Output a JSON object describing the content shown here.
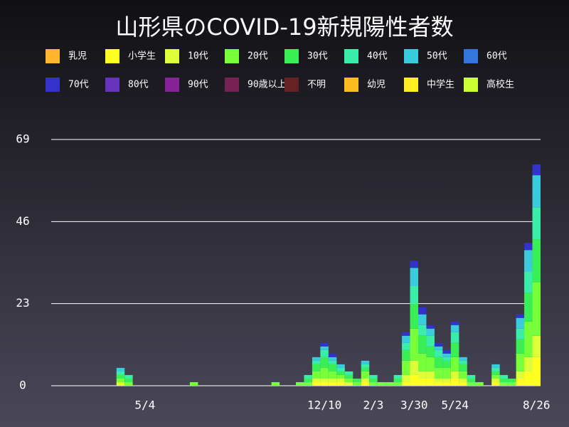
{
  "chart_data": {
    "type": "stacked_bar",
    "title": "山形県のCOVID-19新規陽性者数",
    "categories": [
      null,
      null,
      null,
      null,
      null,
      null,
      null,
      null,
      null,
      null,
      null,
      "5/4",
      null,
      null,
      null,
      null,
      null,
      null,
      null,
      null,
      null,
      null,
      null,
      null,
      null,
      null,
      null,
      null,
      null,
      null,
      null,
      null,
      null,
      "12/10",
      null,
      null,
      null,
      null,
      null,
      "2/3",
      null,
      null,
      null,
      null,
      "3/30",
      null,
      null,
      null,
      null,
      "5/24",
      null,
      null,
      null,
      null,
      null,
      null,
      null,
      null,
      null,
      "8/26"
    ],
    "ylim": [
      0,
      69
    ],
    "yticks": [
      0,
      23,
      46,
      69
    ],
    "grid": true,
    "series": [
      {
        "name": "乳児",
        "color": "#ffb52e",
        "values": [
          0,
          0,
          0,
          0,
          0,
          0,
          0,
          0,
          0,
          0,
          0,
          0,
          0,
          0,
          0,
          0,
          0,
          0,
          0,
          0,
          0,
          0,
          0,
          0,
          0,
          0,
          0,
          0,
          0,
          0,
          0,
          0,
          0,
          0,
          0,
          0,
          0,
          0,
          0,
          0,
          0,
          0,
          0,
          0,
          0,
          0,
          0,
          0,
          0,
          0,
          0,
          0,
          0,
          0,
          0,
          0,
          0,
          0,
          0,
          0
        ]
      },
      {
        "name": "小学生",
        "color": "#ffff22",
        "values": [
          0,
          0,
          0,
          0,
          0,
          0,
          0,
          0,
          0,
          0,
          0,
          0,
          0,
          0,
          0,
          0,
          0,
          0,
          0,
          0,
          0,
          0,
          0,
          0,
          0,
          0,
          0,
          0,
          0,
          0,
          0,
          0,
          1,
          1,
          1,
          1,
          0,
          0,
          1,
          0,
          0,
          0,
          0,
          1,
          3,
          2,
          2,
          1,
          1,
          2,
          1,
          0,
          0,
          0,
          1,
          0,
          0,
          2,
          4,
          8
        ]
      },
      {
        "name": "10代",
        "color": "#ddff3a",
        "values": [
          0,
          0,
          0,
          0,
          0,
          0,
          0,
          0,
          1,
          0,
          0,
          0,
          0,
          0,
          0,
          0,
          0,
          0,
          0,
          0,
          0,
          0,
          0,
          0,
          0,
          0,
          0,
          0,
          0,
          0,
          0,
          0,
          1,
          1,
          1,
          1,
          1,
          0,
          1,
          0,
          0,
          0,
          0,
          2,
          4,
          2,
          2,
          1,
          1,
          2,
          1,
          0,
          0,
          0,
          1,
          0,
          0,
          2,
          4,
          6
        ]
      },
      {
        "name": "20代",
        "color": "#77ff3a",
        "values": [
          0,
          0,
          0,
          0,
          0,
          0,
          0,
          0,
          1,
          1,
          0,
          0,
          0,
          0,
          0,
          0,
          0,
          1,
          0,
          0,
          0,
          0,
          0,
          0,
          0,
          0,
          0,
          1,
          0,
          0,
          1,
          1,
          2,
          3,
          2,
          1,
          1,
          1,
          2,
          1,
          1,
          1,
          1,
          4,
          9,
          5,
          4,
          3,
          3,
          4,
          2,
          1,
          1,
          0,
          1,
          1,
          1,
          5,
          10,
          15
        ]
      },
      {
        "name": "30代",
        "color": "#3aee55",
        "values": [
          0,
          0,
          0,
          0,
          0,
          0,
          0,
          0,
          1,
          1,
          0,
          0,
          0,
          0,
          0,
          0,
          0,
          0,
          0,
          0,
          0,
          0,
          0,
          0,
          0,
          0,
          0,
          0,
          0,
          0,
          0,
          1,
          2,
          3,
          2,
          1,
          1,
          1,
          1,
          1,
          0,
          0,
          1,
          3,
          7,
          5,
          3,
          3,
          2,
          4,
          2,
          1,
          0,
          0,
          1,
          1,
          1,
          4,
          8,
          12
        ]
      },
      {
        "name": "40代",
        "color": "#3aeeaa",
        "values": [
          0,
          0,
          0,
          0,
          0,
          0,
          0,
          0,
          1,
          1,
          0,
          0,
          0,
          0,
          0,
          0,
          0,
          0,
          0,
          0,
          0,
          0,
          0,
          0,
          0,
          0,
          0,
          0,
          0,
          0,
          0,
          1,
          1,
          2,
          1,
          1,
          1,
          0,
          1,
          1,
          0,
          0,
          1,
          2,
          5,
          3,
          3,
          2,
          1,
          3,
          1,
          1,
          0,
          0,
          1,
          1,
          0,
          3,
          6,
          9
        ]
      },
      {
        "name": "50代",
        "color": "#3accdd",
        "values": [
          0,
          0,
          0,
          0,
          0,
          0,
          0,
          0,
          1,
          0,
          0,
          0,
          0,
          0,
          0,
          0,
          0,
          0,
          0,
          0,
          0,
          0,
          0,
          0,
          0,
          0,
          0,
          0,
          0,
          0,
          0,
          0,
          1,
          1,
          1,
          1,
          0,
          0,
          1,
          0,
          0,
          0,
          0,
          2,
          5,
          3,
          2,
          1,
          1,
          2,
          1,
          0,
          0,
          0,
          1,
          0,
          0,
          3,
          6,
          9
        ]
      },
      {
        "name": "60代",
        "color": "#3377dd",
        "values": [
          0,
          0,
          0,
          0,
          0,
          0,
          0,
          0,
          0,
          0,
          0,
          0,
          0,
          0,
          0,
          0,
          0,
          0,
          0,
          0,
          0,
          0,
          0,
          0,
          0,
          0,
          0,
          0,
          0,
          0,
          0,
          0,
          0,
          0,
          0,
          0,
          0,
          0,
          0,
          0,
          0,
          0,
          0,
          0,
          0,
          0,
          0,
          0,
          0,
          0,
          0,
          0,
          0,
          0,
          0,
          0,
          0,
          0,
          0,
          0
        ]
      },
      {
        "name": "70代",
        "color": "#3333cc",
        "values": [
          0,
          0,
          0,
          0,
          0,
          0,
          0,
          0,
          0,
          0,
          0,
          0,
          0,
          0,
          0,
          0,
          0,
          0,
          0,
          0,
          0,
          0,
          0,
          0,
          0,
          0,
          0,
          0,
          0,
          0,
          0,
          0,
          0,
          1,
          1,
          0,
          0,
          0,
          0,
          0,
          0,
          0,
          0,
          1,
          2,
          2,
          1,
          1,
          1,
          1,
          0,
          0,
          0,
          0,
          0,
          0,
          0,
          1,
          2,
          3
        ]
      },
      {
        "name": "80代",
        "color": "#6633bb",
        "values": [
          0,
          0,
          0,
          0,
          0,
          0,
          0,
          0,
          0,
          0,
          0,
          0,
          0,
          0,
          0,
          0,
          0,
          0,
          0,
          0,
          0,
          0,
          0,
          0,
          0,
          0,
          0,
          0,
          0,
          0,
          0,
          0,
          0,
          0,
          0,
          0,
          0,
          0,
          0,
          0,
          0,
          0,
          0,
          0,
          0,
          0,
          0,
          0,
          0,
          0,
          0,
          0,
          0,
          0,
          0,
          0,
          0,
          0,
          0,
          0
        ]
      },
      {
        "name": "90代",
        "color": "#882299",
        "values": [
          0,
          0,
          0,
          0,
          0,
          0,
          0,
          0,
          0,
          0,
          0,
          0,
          0,
          0,
          0,
          0,
          0,
          0,
          0,
          0,
          0,
          0,
          0,
          0,
          0,
          0,
          0,
          0,
          0,
          0,
          0,
          0,
          0,
          0,
          0,
          0,
          0,
          0,
          0,
          0,
          0,
          0,
          0,
          0,
          0,
          0,
          0,
          0,
          0,
          0,
          0,
          0,
          0,
          0,
          0,
          0,
          0,
          0,
          0,
          0
        ]
      },
      {
        "name": "90歳以上",
        "color": "#772255",
        "values": [
          0,
          0,
          0,
          0,
          0,
          0,
          0,
          0,
          0,
          0,
          0,
          0,
          0,
          0,
          0,
          0,
          0,
          0,
          0,
          0,
          0,
          0,
          0,
          0,
          0,
          0,
          0,
          0,
          0,
          0,
          0,
          0,
          0,
          0,
          0,
          0,
          0,
          0,
          0,
          0,
          0,
          0,
          0,
          0,
          0,
          0,
          0,
          0,
          0,
          0,
          0,
          0,
          0,
          0,
          0,
          0,
          0,
          0,
          0,
          0
        ]
      },
      {
        "name": "不明",
        "color": "#662222",
        "values": [
          0,
          0,
          0,
          0,
          0,
          0,
          0,
          0,
          0,
          0,
          0,
          0,
          0,
          0,
          0,
          0,
          0,
          0,
          0,
          0,
          0,
          0,
          0,
          0,
          0,
          0,
          0,
          0,
          0,
          0,
          0,
          0,
          0,
          0,
          0,
          0,
          0,
          0,
          0,
          0,
          0,
          0,
          0,
          0,
          0,
          0,
          0,
          0,
          0,
          0,
          0,
          0,
          0,
          0,
          0,
          0,
          0,
          0,
          0,
          0
        ]
      },
      {
        "name": "幼児",
        "color": "#ffbb22",
        "values": [
          0,
          0,
          0,
          0,
          0,
          0,
          0,
          0,
          0,
          0,
          0,
          0,
          0,
          0,
          0,
          0,
          0,
          0,
          0,
          0,
          0,
          0,
          0,
          0,
          0,
          0,
          0,
          0,
          0,
          0,
          0,
          0,
          0,
          0,
          0,
          0,
          0,
          0,
          0,
          0,
          0,
          0,
          0,
          0,
          0,
          0,
          0,
          0,
          0,
          0,
          0,
          0,
          0,
          0,
          0,
          0,
          0,
          0,
          0,
          0
        ]
      },
      {
        "name": "中学生",
        "color": "#ffee22",
        "values": [
          0,
          0,
          0,
          0,
          0,
          0,
          0,
          0,
          0,
          0,
          0,
          0,
          0,
          0,
          0,
          0,
          0,
          0,
          0,
          0,
          0,
          0,
          0,
          0,
          0,
          0,
          0,
          0,
          0,
          0,
          0,
          0,
          0,
          0,
          0,
          0,
          0,
          0,
          0,
          0,
          0,
          0,
          0,
          0,
          0,
          0,
          0,
          0,
          0,
          0,
          0,
          0,
          0,
          0,
          0,
          0,
          0,
          0,
          0,
          0
        ]
      },
      {
        "name": "高校生",
        "color": "#ccff33",
        "values": [
          0,
          0,
          0,
          0,
          0,
          0,
          0,
          0,
          0,
          0,
          0,
          0,
          0,
          0,
          0,
          0,
          0,
          0,
          0,
          0,
          0,
          0,
          0,
          0,
          0,
          0,
          0,
          0,
          0,
          0,
          0,
          0,
          0,
          0,
          0,
          0,
          0,
          0,
          0,
          0,
          0,
          0,
          0,
          0,
          0,
          0,
          0,
          0,
          0,
          0,
          0,
          0,
          0,
          0,
          0,
          0,
          0,
          0,
          0,
          0
        ]
      }
    ]
  }
}
